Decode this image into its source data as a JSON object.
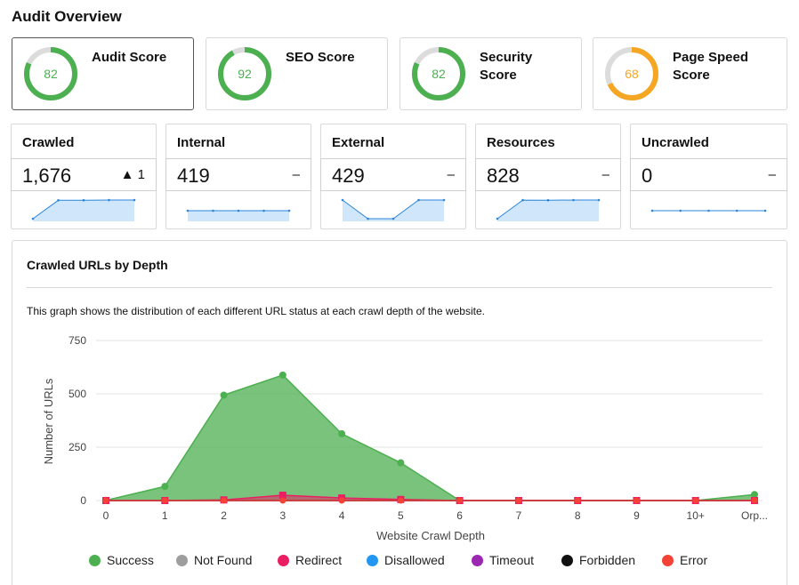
{
  "page": {
    "title": "Audit Overview"
  },
  "scores": [
    {
      "label": "Audit Score",
      "value": 82,
      "color": "#4caf50",
      "selected": true
    },
    {
      "label": "SEO Score",
      "value": 92,
      "color": "#4caf50",
      "selected": false
    },
    {
      "label": "Security Score",
      "value": 82,
      "color": "#4caf50",
      "selected": false
    },
    {
      "label": "Page Speed Score",
      "value": 68,
      "color": "#f5a623",
      "selected": false
    }
  ],
  "metrics": [
    {
      "title": "Crawled",
      "value": "1,676",
      "delta": "▲ 1",
      "spark": [
        1250,
        1670,
        1672,
        1675,
        1676
      ]
    },
    {
      "title": "Internal",
      "value": "419",
      "delta": "–",
      "spark": [
        419,
        419,
        419,
        419,
        419
      ]
    },
    {
      "title": "External",
      "value": "429",
      "delta": "–",
      "spark": [
        429,
        427,
        427,
        429,
        429
      ]
    },
    {
      "title": "Resources",
      "value": "828",
      "delta": "–",
      "spark": [
        400,
        826,
        824,
        828,
        828
      ]
    },
    {
      "title": "Uncrawled",
      "value": "0",
      "delta": "–",
      "spark": [
        0,
        0,
        0,
        0,
        0
      ]
    }
  ],
  "depth_panel": {
    "title": "Crawled URLs by Depth",
    "description": "This graph shows the distribution of each different URL status at each crawl depth of the website."
  },
  "chart_data": {
    "type": "area",
    "xlabel": "Website Crawl Depth",
    "ylabel": "Number of URLs",
    "categories": [
      "0",
      "1",
      "2",
      "3",
      "4",
      "5",
      "6",
      "7",
      "8",
      "9",
      "10+",
      "Orp..."
    ],
    "ylim": [
      0,
      750
    ],
    "yticks": [
      "0",
      "250",
      "500",
      "750"
    ],
    "grid": true,
    "legend_position": "bottom",
    "series": [
      {
        "name": "Success",
        "color": "#4caf50",
        "values": [
          1,
          66,
          494,
          588,
          313,
          177,
          0,
          0,
          0,
          0,
          0,
          28
        ]
      },
      {
        "name": "Not Found",
        "color": "#9e9e9e",
        "values": [
          0,
          0,
          0,
          0,
          0,
          0,
          0,
          0,
          0,
          0,
          0,
          0
        ]
      },
      {
        "name": "Redirect",
        "color": "#e91e63",
        "values": [
          0,
          0,
          3,
          25,
          12,
          5,
          0,
          0,
          0,
          0,
          0,
          0
        ]
      },
      {
        "name": "Disallowed",
        "color": "#2196f3",
        "values": [
          0,
          0,
          0,
          0,
          0,
          0,
          0,
          0,
          0,
          0,
          0,
          0
        ]
      },
      {
        "name": "Timeout",
        "color": "#9c27b0",
        "values": [
          0,
          0,
          0,
          0,
          0,
          0,
          0,
          0,
          0,
          0,
          0,
          0
        ]
      },
      {
        "name": "Forbidden",
        "color": "#111111",
        "values": [
          0,
          0,
          0,
          0,
          0,
          0,
          0,
          0,
          0,
          0,
          0,
          0
        ]
      },
      {
        "name": "Error",
        "color": "#f44336",
        "values": [
          0,
          0,
          0,
          0,
          0,
          0,
          0,
          0,
          0,
          0,
          0,
          0
        ]
      }
    ]
  }
}
